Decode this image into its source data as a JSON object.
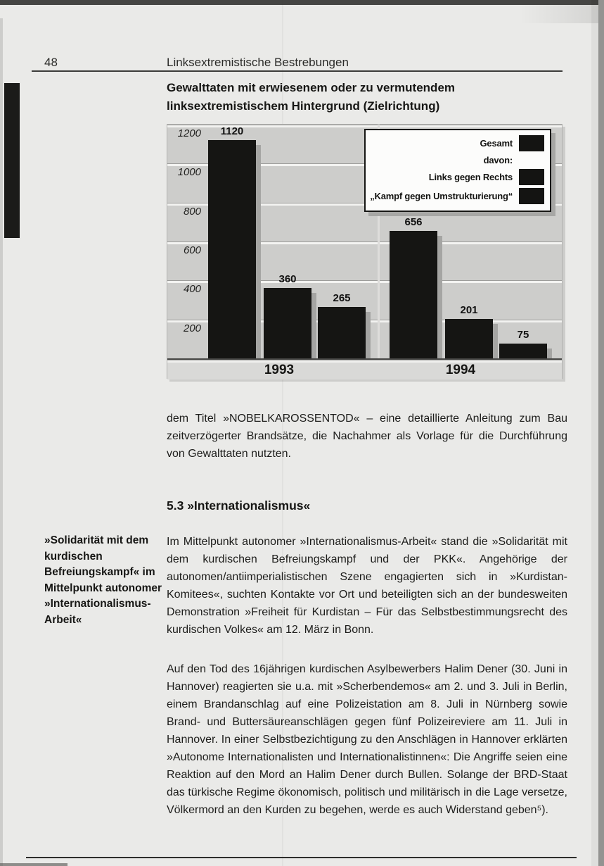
{
  "page": {
    "number": "48",
    "header": "Linksextremistische Bestrebungen"
  },
  "chart_data": {
    "type": "bar",
    "title": "Gewalttaten mit erwiesenem oder zu vermutendem linksextremistischem Hintergrund (Zielrichtung)",
    "categories": [
      "1993",
      "1994"
    ],
    "series": [
      {
        "name": "Gesamt",
        "values": [
          1120,
          656
        ]
      },
      {
        "name": "Links gegen Rechts",
        "values": [
          360,
          201
        ]
      },
      {
        "name": "„Kampf gegen Umstrukturierung“",
        "values": [
          265,
          75
        ]
      }
    ],
    "ylim": [
      0,
      1200
    ],
    "yticks": [
      200,
      400,
      600,
      800,
      1000,
      1200
    ],
    "grid": "horizontal",
    "bar_color": "#151513",
    "plot_background": "#cdcdcb",
    "legend_position": "top-right",
    "legend_items": [
      {
        "label": "Gesamt",
        "swatch": true
      },
      {
        "label": "davon:",
        "swatch": false
      },
      {
        "label": "Links gegen Rechts",
        "swatch": true
      },
      {
        "label": "„Kampf gegen Umstrukturierung“",
        "swatch": true
      }
    ]
  },
  "body": {
    "para_nobel": "dem Titel »NOBELKAROSSENTOD« – eine detaillierte Anleitung zum Bau zeitverzögerter Brandsätze, die Nachahmer als Vorlage für die Durchführung von Gewalttaten nutzten.",
    "section_heading": "5.3 »Internationalismus«",
    "margin_note": "»Solidarität mit dem kurdischen Befreiungskampf« im Mittelpunkt autonomer »Internationalismus-Arbeit«",
    "para_1": "Im Mittelpunkt autonomer »Internationalismus-Arbeit« stand die »Solidarität mit dem kurdischen Befreiungskampf und der PKK«. Angehörige der autonomen/antiimperialistischen Szene engagierten sich in »Kurdistan-Komitees«, suchten Kontakte vor Ort und beteiligten sich an der bundesweiten Demonstration »Freiheit für Kurdistan – Für das Selbstbestimmungsrecht des kurdischen Volkes« am 12. März in Bonn.",
    "para_2": "Auf den Tod des 16jährigen kurdischen Asylbewerbers Halim Dener (30. Juni in Hannover) reagierten sie u.a. mit »Scherbendemos« am 2. und 3. Juli in Berlin, einem Brandanschlag auf eine Polizeistation am 8. Juli in Nürnberg sowie Brand- und Buttersäureanschlägen gegen fünf Polizeireviere am 11. Juli in Hannover. In einer Selbstbezichtigung zu den Anschlägen in Hannover erklärten »Autonome Internationalisten und Internationalistinnen«: Die Angriffe seien eine Reaktion auf den Mord an Halim Dener durch Bullen. Solange der BRD-Staat das türkische Regime ökonomisch, politisch und militärisch in die Lage versetze, Völkermord an den Kurden zu begehen, werde es auch Widerstand geben⁵)."
  }
}
